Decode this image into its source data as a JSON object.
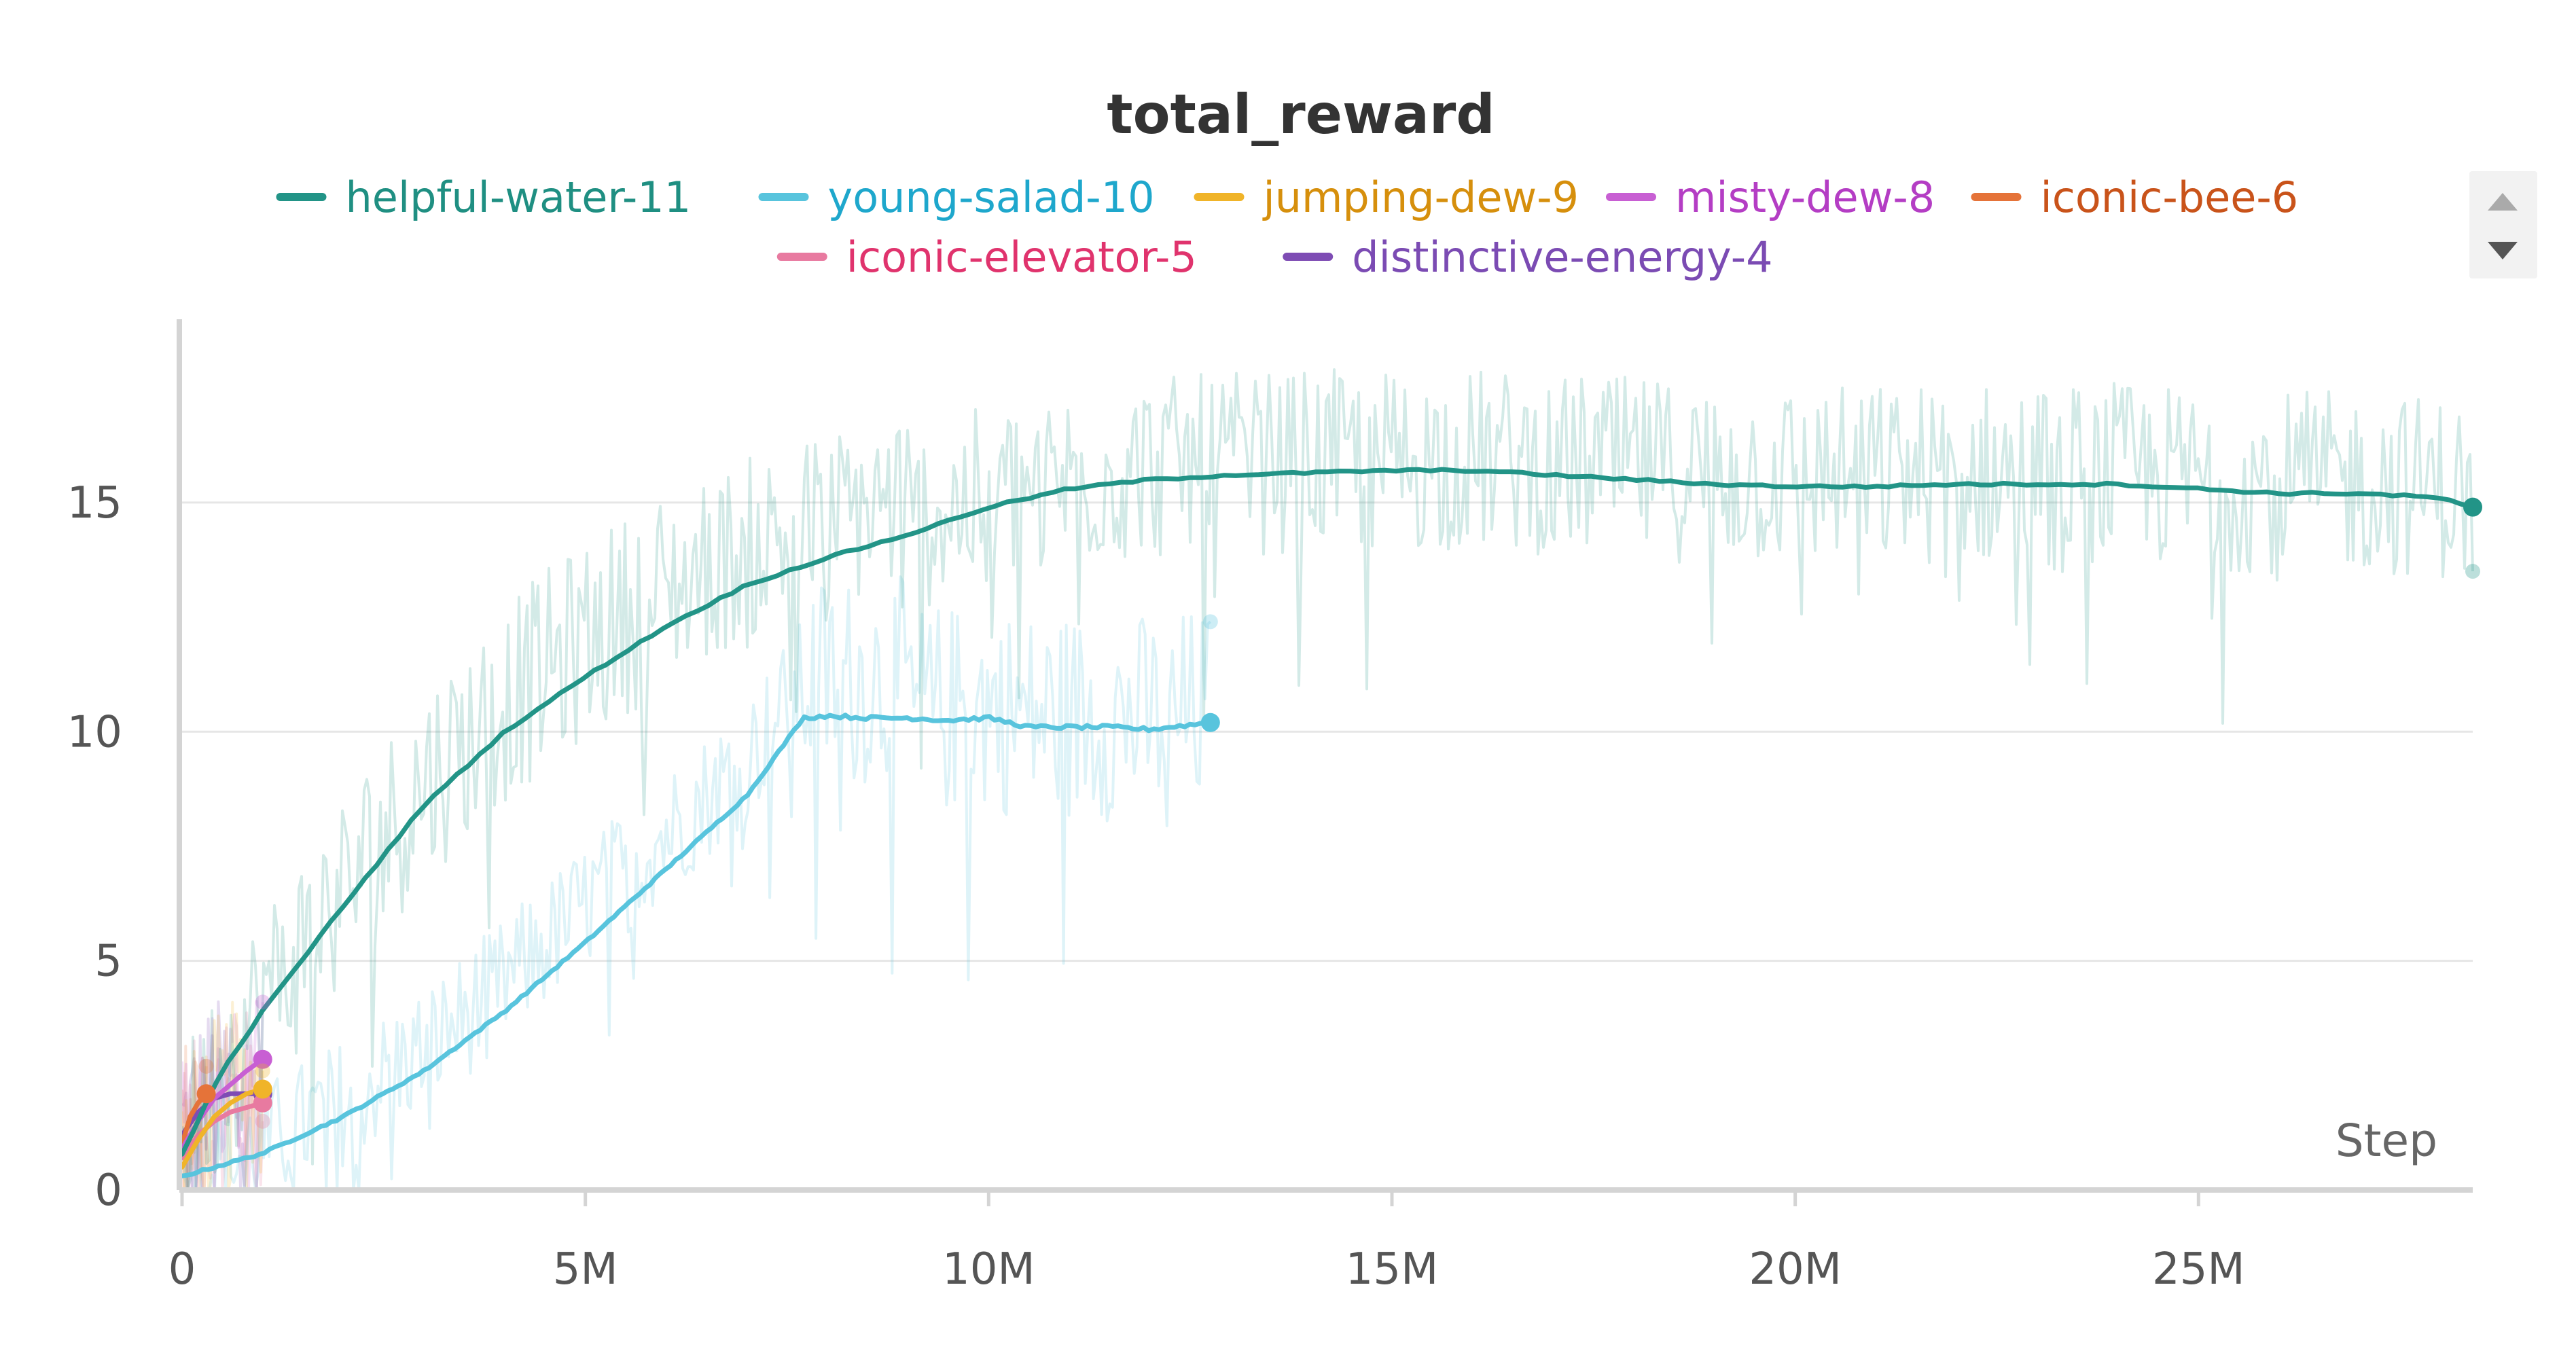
{
  "chart_data": {
    "type": "line",
    "title": "total_reward",
    "xlabel": "Step",
    "ylabel": "",
    "xlim": [
      0,
      28400000
    ],
    "ylim": [
      0,
      19
    ],
    "x_ticks": [
      {
        "value": 0,
        "label": "0"
      },
      {
        "value": 5000000,
        "label": "5M"
      },
      {
        "value": 10000000,
        "label": "10M"
      },
      {
        "value": 15000000,
        "label": "15M"
      },
      {
        "value": 20000000,
        "label": "20M"
      },
      {
        "value": 25000000,
        "label": "25M"
      }
    ],
    "y_ticks": [
      {
        "value": 0,
        "label": "0"
      },
      {
        "value": 5,
        "label": "5"
      },
      {
        "value": 10,
        "label": "10"
      },
      {
        "value": 15,
        "label": "15"
      }
    ],
    "grid": true,
    "legend_position": "top",
    "series": [
      {
        "name": "helpful-water-11",
        "color": "#229487",
        "text_color": "#1f8f82",
        "raw_end": 13.5,
        "x": [
          0,
          500000,
          1000000,
          2000000,
          3000000,
          4000000,
          5000000,
          6000000,
          7000000,
          8000000,
          9000000,
          10000000,
          11000000,
          12000000,
          13000000,
          14000000,
          15000000,
          16000000,
          17000000,
          18000000,
          19000000,
          20000000,
          21000000,
          22000000,
          23000000,
          24000000,
          25000000,
          26000000,
          27000000,
          28000000,
          28400000
        ],
        "values": [
          0.8,
          2.6,
          3.9,
          6.2,
          8.4,
          10.0,
          11.2,
          12.3,
          13.2,
          13.8,
          14.3,
          14.9,
          15.3,
          15.5,
          15.6,
          15.65,
          15.7,
          15.7,
          15.6,
          15.5,
          15.4,
          15.35,
          15.35,
          15.4,
          15.4,
          15.4,
          15.3,
          15.2,
          15.2,
          15.1,
          14.9
        ]
      },
      {
        "name": "young-salad-10",
        "color": "#58c4dd",
        "text_color": "#1ea7cc",
        "raw_end": 12.4,
        "x": [
          0,
          1000000,
          2000000,
          3000000,
          4000000,
          5000000,
          6000000,
          7000000,
          7700000,
          8000000,
          8500000,
          9000000,
          9500000,
          10000000,
          10500000,
          11000000,
          11500000,
          12000000,
          12500000,
          12750000
        ],
        "values": [
          0.3,
          0.8,
          1.6,
          2.6,
          3.9,
          5.4,
          7.0,
          8.6,
          10.3,
          10.35,
          10.3,
          10.3,
          10.25,
          10.3,
          10.1,
          10.1,
          10.1,
          10.05,
          10.15,
          10.2
        ]
      },
      {
        "name": "jumping-dew-9",
        "color": "#f0b429",
        "text_color": "#d68f0c",
        "raw_end": 2.6,
        "x": [
          0,
          200000,
          400000,
          600000,
          800000,
          1000000
        ],
        "values": [
          0.5,
          1.1,
          1.6,
          1.9,
          2.1,
          2.2
        ]
      },
      {
        "name": "misty-dew-8",
        "color": "#c85fd3",
        "text_color": "#b43dc4",
        "raw_end": 4.1,
        "x": [
          0,
          200000,
          400000,
          600000,
          800000,
          1000000
        ],
        "values": [
          0.9,
          1.5,
          2.0,
          2.3,
          2.6,
          2.85
        ]
      },
      {
        "name": "iconic-bee-6",
        "color": "#e57339",
        "text_color": "#c9531a",
        "raw_end": 2.7,
        "x": [
          0,
          100000,
          200000,
          300000
        ],
        "values": [
          1.0,
          1.6,
          1.9,
          2.1
        ]
      },
      {
        "name": "iconic-elevator-5",
        "color": "#e87aa0",
        "text_color": "#e0336d",
        "raw_end": 1.5,
        "x": [
          0,
          200000,
          400000,
          600000,
          800000,
          1000000
        ],
        "values": [
          0.7,
          1.2,
          1.5,
          1.7,
          1.8,
          1.9
        ]
      },
      {
        "name": "distinctive-energy-4",
        "color": "#7e4cb4",
        "text_color": "#7b4bb3",
        "raw_end": 2.1,
        "x": [
          0,
          200000,
          400000,
          600000,
          800000,
          1000000
        ],
        "values": [
          1.2,
          1.7,
          2.0,
          2.1,
          2.1,
          2.1
        ]
      }
    ]
  }
}
